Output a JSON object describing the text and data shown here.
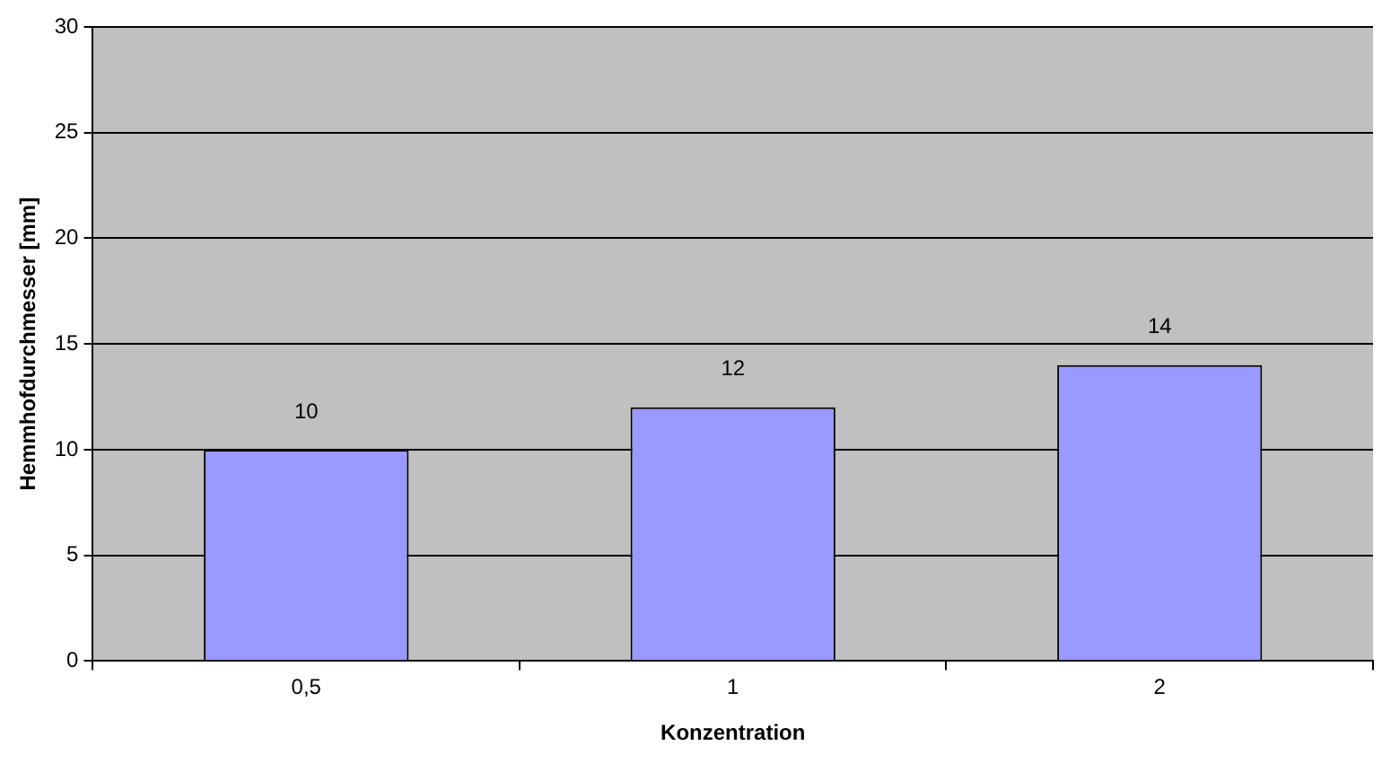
{
  "chart_data": {
    "type": "bar",
    "xlabel": "Konzentration",
    "ylabel": "Hemmhofdurchmesser [mm]",
    "categories": [
      "0,5",
      "1",
      "2"
    ],
    "values": [
      10,
      12,
      14
    ],
    "color": "#9999ff",
    "ylim": [
      0,
      30
    ],
    "yticks": [
      0,
      5,
      10,
      15,
      20,
      25,
      30
    ],
    "grid": "y",
    "legend": false,
    "data_labels": true
  }
}
